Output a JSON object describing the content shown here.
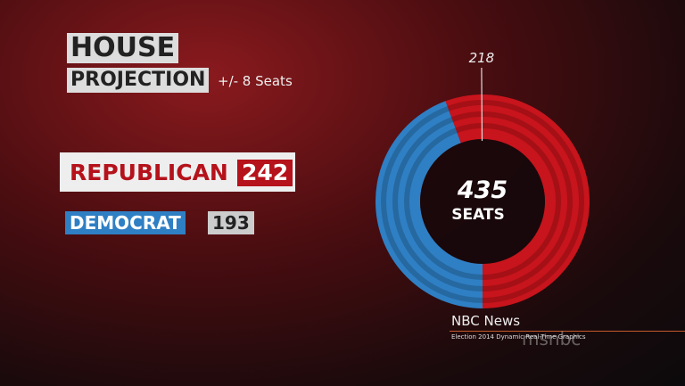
{
  "chart_data": {
    "type": "donut",
    "title": "HOUSE",
    "subtitle": "PROJECTION",
    "annotation": "+/- 8 Seats",
    "categories": [
      "REPUBLICAN",
      "DEMOCRAT"
    ],
    "values": [
      242,
      193
    ],
    "colors": [
      "#c8141c",
      "#2f7fc4"
    ],
    "total": 435,
    "total_label": "SEATS",
    "majority": 218
  },
  "footer": {
    "source": "NBC News",
    "caption": "Election 2014 Dynamic Real-Time Graphics",
    "logo": "msnbc"
  }
}
